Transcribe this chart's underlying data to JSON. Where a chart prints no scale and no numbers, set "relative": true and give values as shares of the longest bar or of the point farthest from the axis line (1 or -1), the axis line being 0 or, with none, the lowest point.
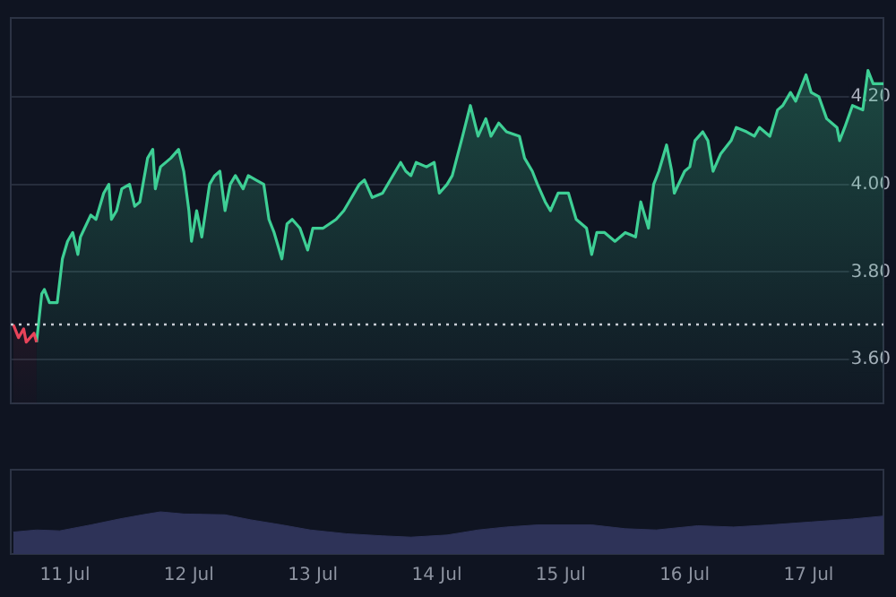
{
  "chart_data": [
    {
      "type": "area",
      "xlim": [
        "--07-10T13:30",
        "--07-17T14:30"
      ],
      "ylim": [
        3.5,
        4.38
      ],
      "yticks": [
        {
          "value": 3.6,
          "label": "3.60"
        },
        {
          "value": 3.8,
          "label": "3.80"
        },
        {
          "value": 4.0,
          "label": "4.00"
        },
        {
          "value": 4.2,
          "label": "4.20"
        }
      ],
      "grid": "y",
      "legend": false,
      "tick_labels": "y",
      "ref_lines": [
        {
          "axis": "y",
          "value": 3.68,
          "color": "#c8ccd4",
          "line_style": "dotted"
        }
      ],
      "series": [
        {
          "color": "#e8445a",
          "x": [
            "--07-10T14:00",
            "--07-10T15:00",
            "--07-10T16:00",
            "--07-10T16:30",
            "--07-10T18:00",
            "--07-10T18:30"
          ],
          "values": [
            3.68,
            3.65,
            3.67,
            3.64,
            3.66,
            3.64
          ]
        },
        {
          "color": "#3ecf95",
          "x": [
            "--07-10T18:30",
            "--07-10T19:30",
            "--07-10T20:00",
            "--07-10T21:00",
            "--07-10T22:30",
            "--07-10T23:30",
            "--07-11T00:30",
            "--07-11T01:30",
            "--07-11T02:30",
            "--07-11T03:00",
            "--07-11T05:00",
            "--07-11T06:00",
            "--07-11T07:30",
            "--07-11T08:30",
            "--07-11T09:00",
            "--07-11T10:00",
            "--07-11T11:00",
            "--07-11T12:30",
            "--07-11T13:30",
            "--07-11T14:30",
            "--07-11T16:00",
            "--07-11T17:00",
            "--07-11T17:30",
            "--07-11T18:30",
            "--07-11T20:30",
            "--07-11T22:00",
            "--07-11T23:00",
            "--07-12T00:00",
            "--07-12T00:30",
            "--07-12T01:30",
            "--07-12T02:30",
            "--07-12T04:00",
            "--07-12T05:00",
            "--07-12T06:00",
            "--07-12T07:00",
            "--07-12T08:00",
            "--07-12T09:00",
            "--07-12T10:30",
            "--07-12T11:30",
            "--07-12T13:00",
            "--07-12T14:30",
            "--07-12T15:30",
            "--07-12T16:30",
            "--07-12T18:00",
            "--07-12T19:00",
            "--07-12T20:00",
            "--07-12T21:30",
            "--07-12T23:00",
            "--07-13T00:00",
            "--07-13T02:00",
            "--07-13T04:30",
            "--07-13T06:00",
            "--07-13T07:00",
            "--07-13T09:00",
            "--07-13T10:00",
            "--07-13T11:30",
            "--07-13T13:30",
            "--07-13T15:00",
            "--07-13T17:00",
            "--07-13T18:00",
            "--07-13T19:00",
            "--07-13T20:00",
            "--07-13T22:00",
            "--07-13T23:30",
            "--07-14T00:30",
            "--07-14T02:00",
            "--07-14T03:00",
            "--07-14T05:00",
            "--07-14T06:30",
            "--07-14T08:00",
            "--07-14T09:30",
            "--07-14T10:30",
            "--07-14T12:00",
            "--07-14T13:30",
            "--07-14T16:00",
            "--07-14T17:00",
            "--07-14T18:30",
            "--07-14T19:30",
            "--07-14T21:00",
            "--07-14T22:00",
            "--07-14T23:30",
            "--07-15T01:30",
            "--07-15T03:00",
            "--07-15T05:00",
            "--07-15T06:00",
            "--07-15T07:00",
            "--07-15T08:30",
            "--07-15T10:30",
            "--07-15T12:30",
            "--07-15T14:30",
            "--07-15T15:30",
            "--07-15T17:00",
            "--07-15T18:00",
            "--07-15T19:00",
            "--07-15T20:30",
            "--07-15T21:30",
            "--07-15T22:00",
            "--07-16T00:00",
            "--07-16T01:00",
            "--07-16T02:00",
            "--07-16T03:30",
            "--07-16T04:30",
            "--07-16T05:30",
            "--07-16T07:00",
            "--07-16T09:00",
            "--07-16T10:00",
            "--07-16T12:00",
            "--07-16T13:30",
            "--07-16T14:30",
            "--07-16T16:30",
            "--07-16T18:00",
            "--07-16T19:00",
            "--07-16T20:30",
            "--07-16T21:30",
            "--07-16T23:30",
            "--07-17T00:30",
            "--07-17T02:00",
            "--07-17T03:30",
            "--07-17T05:30",
            "--07-17T06:00",
            "--07-17T07:00",
            "--07-17T08:30",
            "--07-17T10:30",
            "--07-17T11:30",
            "--07-17T12:30",
            "--07-17T14:30"
          ],
          "values": [
            3.64,
            3.75,
            3.76,
            3.73,
            3.73,
            3.83,
            3.87,
            3.89,
            3.84,
            3.88,
            3.93,
            3.92,
            3.98,
            4.0,
            3.92,
            3.94,
            3.99,
            4.0,
            3.95,
            3.96,
            4.06,
            4.08,
            3.99,
            4.04,
            4.06,
            4.08,
            4.03,
            3.94,
            3.87,
            3.94,
            3.88,
            4.0,
            4.02,
            4.03,
            3.94,
            4.0,
            4.02,
            3.99,
            4.02,
            4.01,
            4.0,
            3.92,
            3.89,
            3.83,
            3.91,
            3.92,
            3.9,
            3.85,
            3.9,
            3.9,
            3.92,
            3.94,
            3.96,
            4.0,
            4.01,
            3.97,
            3.98,
            4.01,
            4.05,
            4.03,
            4.02,
            4.05,
            4.04,
            4.05,
            3.98,
            4.0,
            4.02,
            4.11,
            4.18,
            4.11,
            4.15,
            4.11,
            4.14,
            4.12,
            4.11,
            4.06,
            4.03,
            4.0,
            3.96,
            3.94,
            3.98,
            3.98,
            3.92,
            3.9,
            3.84,
            3.89,
            3.89,
            3.87,
            3.89,
            3.88,
            3.96,
            3.9,
            4.0,
            4.03,
            4.09,
            4.03,
            3.98,
            4.03,
            4.04,
            4.1,
            4.12,
            4.1,
            4.03,
            4.07,
            4.1,
            4.13,
            4.12,
            4.11,
            4.13,
            4.11,
            4.17,
            4.18,
            4.21,
            4.19,
            4.25,
            4.21,
            4.2,
            4.15,
            4.13,
            4.1,
            4.13,
            4.18,
            4.17,
            4.26,
            4.23,
            4.23
          ]
        }
      ]
    },
    {
      "type": "area",
      "relative": true,
      "xlim": [
        "--07-10T13:30",
        "--07-17T14:30"
      ],
      "xticks": [
        {
          "value": "--07-11",
          "label": "11 Jul"
        },
        {
          "value": "--07-12",
          "label": "12 Jul"
        },
        {
          "value": "--07-13",
          "label": "13 Jul"
        },
        {
          "value": "--07-14",
          "label": "14 Jul"
        },
        {
          "value": "--07-15",
          "label": "15 Jul"
        },
        {
          "value": "--07-16",
          "label": "16 Jul"
        },
        {
          "value": "--07-17",
          "label": "17 Jul"
        }
      ],
      "tick_labels": "x",
      "legend": false,
      "series": [
        {
          "color": "#2e3358",
          "x": [
            "--07-10T14:00",
            "--07-10T18:30",
            "--07-10T23:00",
            "--07-11T05:00",
            "--07-11T10:30",
            "--07-11T15:00",
            "--07-11T18:30",
            "--07-11T23:00",
            "--07-12T07:00",
            "--07-12T12:00",
            "--07-12T18:00",
            "--07-12T23:30",
            "--07-13T06:30",
            "--07-13T13:30",
            "--07-13T19:00",
            "--07-14T02:00",
            "--07-14T08:00",
            "--07-14T13:30",
            "--07-14T19:30",
            "--07-15T06:00",
            "--07-15T12:30",
            "--07-15T18:30",
            "--07-16T02:30",
            "--07-16T09:30",
            "--07-16T16:30",
            "--07-17T00:30",
            "--07-17T08:30",
            "--07-17T14:30"
          ],
          "values": [
            0.52,
            0.57,
            0.55,
            0.69,
            0.83,
            0.93,
            1,
            0.95,
            0.93,
            0.81,
            0.69,
            0.57,
            0.48,
            0.43,
            0.4,
            0.45,
            0.57,
            0.64,
            0.69,
            0.69,
            0.6,
            0.57,
            0.67,
            0.64,
            0.69,
            0.76,
            0.83,
            0.9
          ]
        }
      ]
    }
  ]
}
